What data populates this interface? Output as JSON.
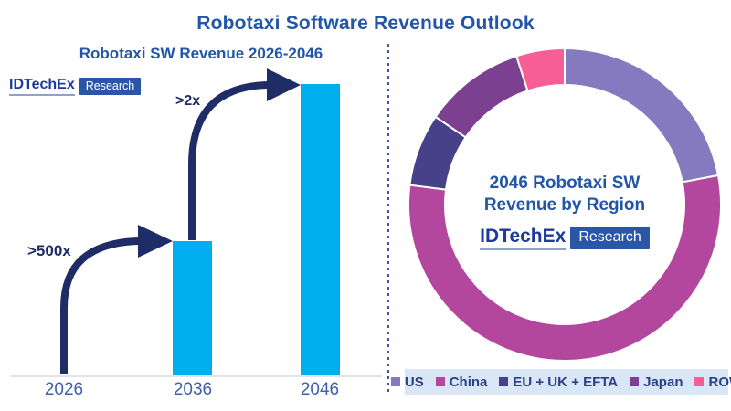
{
  "page": {
    "title": "Robotaxi Software Revenue Outlook"
  },
  "logo": {
    "brand": "IDTechEx",
    "badge": "Research"
  },
  "left_chart": {
    "title": "Robotaxi SW Revenue 2026-2046"
  },
  "right_chart": {
    "title_line1": "2046 Robotaxi SW",
    "title_line2": "Revenue by Region"
  },
  "colors": {
    "title_blue": "#2156A8",
    "bar_cyan": "#00ADEE",
    "arrow_navy": "#202C66",
    "tick_blue": "#3F5FAD",
    "axis_gray": "#E0E4E9",
    "divider_blue": "#3D56A6",
    "legend_background": "#D9E6F5",
    "legend_text": "#2B3F87",
    "logo_navy": "#1C3B9C",
    "logo_badge_blue": "#2B56A8"
  },
  "chart_data": [
    {
      "type": "bar",
      "title": "Robotaxi SW Revenue 2026-2046",
      "categories": [
        "2026",
        "2036",
        "2046"
      ],
      "values": [
        0.1,
        46,
        100
      ],
      "values_note": "relative revenue, no y-axis shown; 2026 is negligible",
      "bar_color": "#00ADEE",
      "xlabel": "",
      "ylabel": "",
      "grid": false,
      "annotations": [
        {
          "label": ">500x",
          "from": "2026",
          "to": "2036"
        },
        {
          "label": ">2x",
          "from": "2036",
          "to": "2046"
        }
      ]
    },
    {
      "type": "pie",
      "subtype": "donut",
      "title": "2046 Robotaxi SW Revenue by Region",
      "labels": [
        "US",
        "China",
        "EU + UK + EFTA",
        "Japan",
        "ROW"
      ],
      "values": [
        22,
        55,
        7.5,
        10.5,
        5
      ],
      "values_unit": "percent of 2046 robotaxi SW revenue (estimated from arc angles)",
      "colors": [
        "#8579BF",
        "#B3479D",
        "#474189",
        "#7B4190",
        "#F85E96"
      ],
      "start_angle_deg": 0,
      "direction": "clockwise",
      "legend_position": "bottom"
    }
  ]
}
